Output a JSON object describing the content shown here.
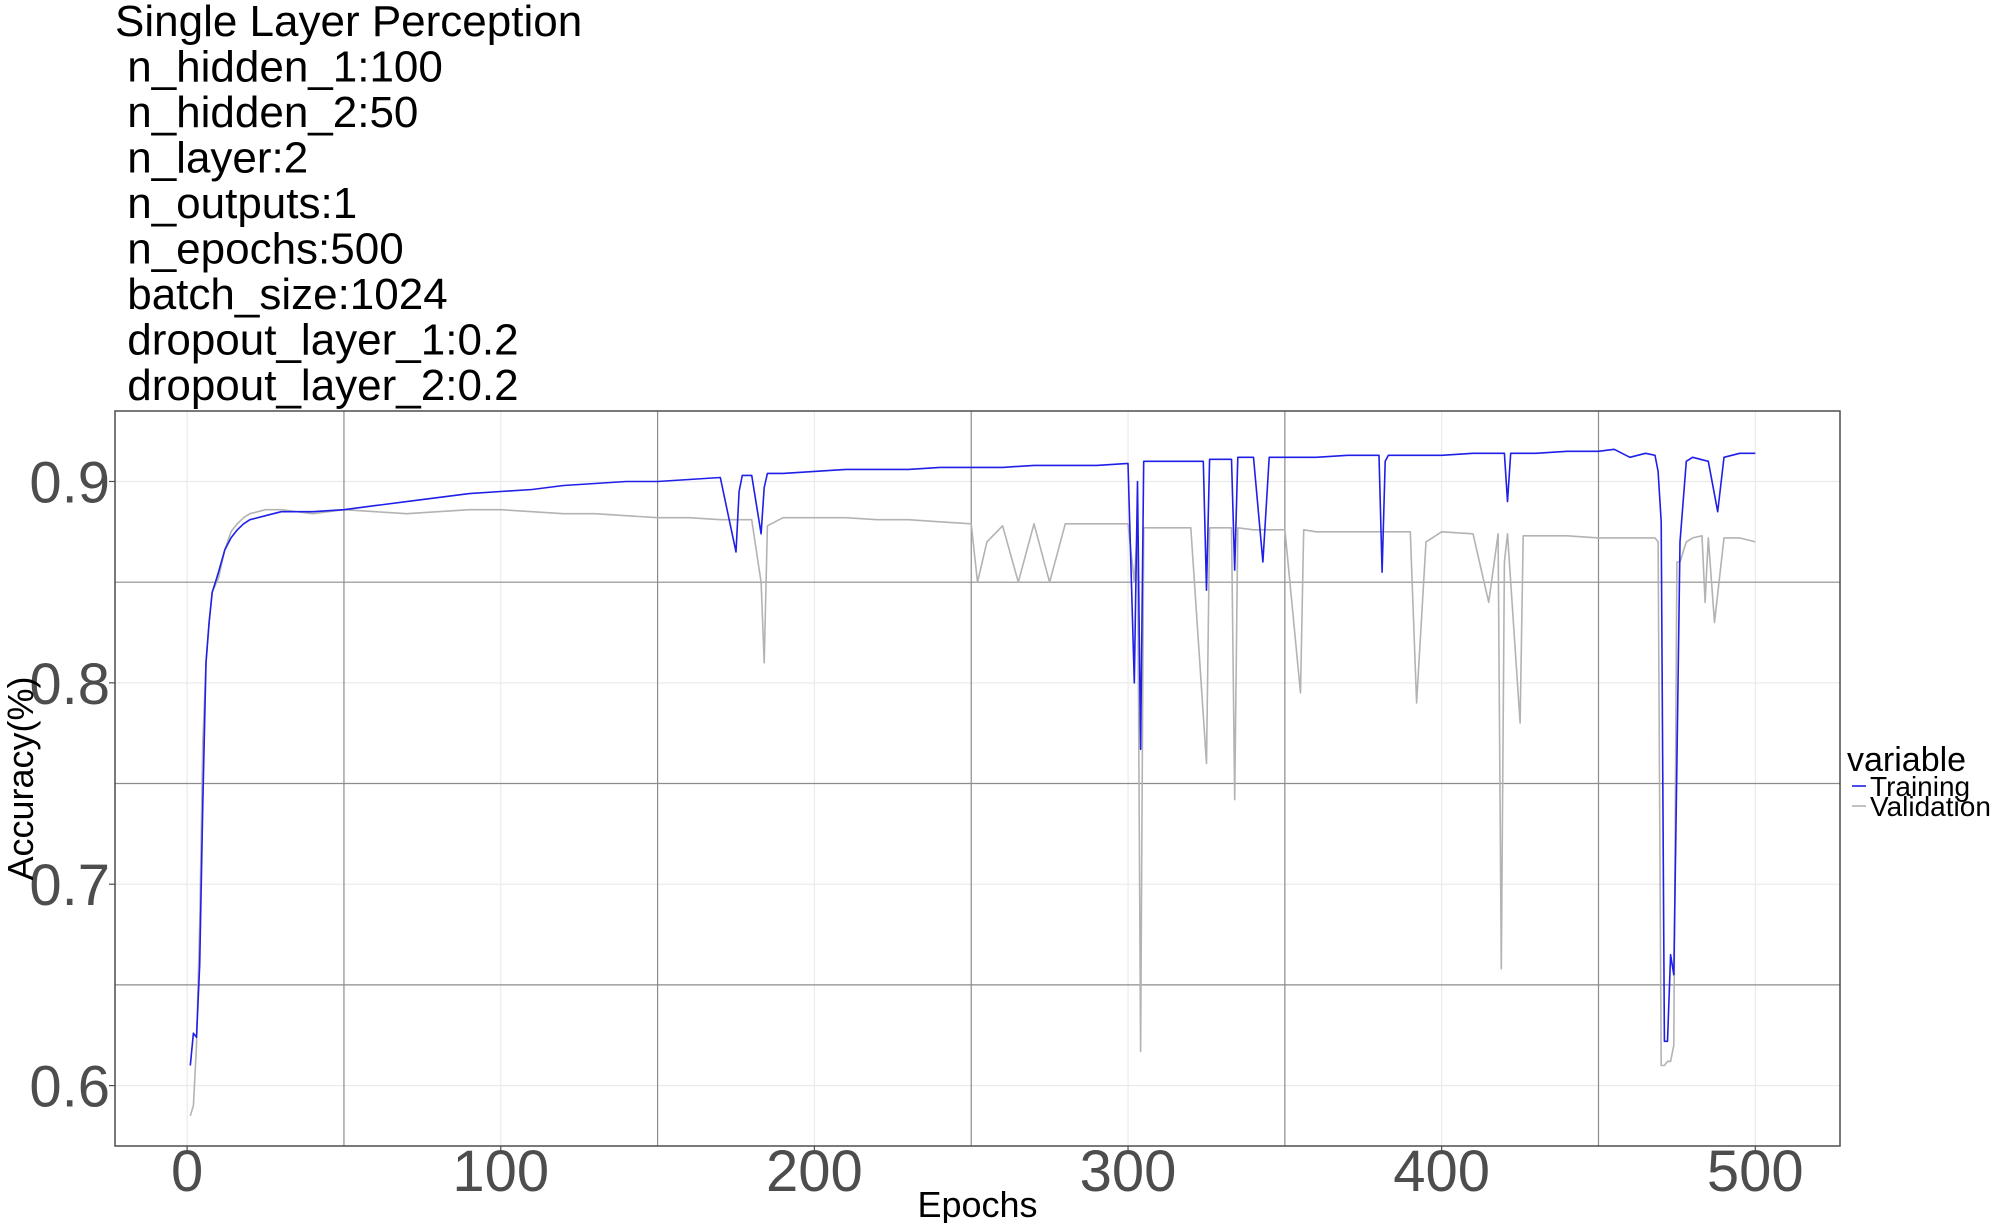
{
  "chart_data": {
    "type": "line",
    "title_lines": [
      "Single Layer Perception",
      " n_hidden_1:100",
      " n_hidden_2:50",
      " n_layer:2",
      " n_outputs:1",
      " n_epochs:500",
      " batch_size:1024",
      " dropout_layer_1:0.2",
      " dropout_layer_2:0.2"
    ],
    "xlabel": "Epochs",
    "ylabel": "Accuracy(%)",
    "xlim": [
      -23,
      527
    ],
    "ylim": [
      0.57,
      0.935
    ],
    "x_ticks": [
      0,
      100,
      200,
      300,
      400,
      500
    ],
    "x_tick_labels": [
      "0",
      "100",
      "200",
      "300",
      "400",
      "500"
    ],
    "y_ticks": [
      0.6,
      0.7,
      0.8,
      0.9
    ],
    "y_tick_labels": [
      "0.6",
      "0.7",
      "0.8",
      "0.9"
    ],
    "minor_x": [
      50,
      150,
      250,
      350,
      450
    ],
    "minor_y": [
      0.65,
      0.75,
      0.85
    ],
    "grid": true,
    "legend": {
      "title": "variable",
      "position": "right"
    },
    "series": [
      {
        "name": "Training",
        "color": "#1f1fe8",
        "x": [
          1,
          2,
          3,
          4,
          5,
          6,
          7,
          8,
          9,
          10,
          12,
          14,
          16,
          18,
          20,
          25,
          30,
          40,
          50,
          60,
          70,
          80,
          90,
          100,
          110,
          120,
          130,
          140,
          150,
          160,
          170,
          175,
          176,
          177,
          180,
          183,
          184,
          185,
          190,
          200,
          210,
          220,
          230,
          240,
          250,
          260,
          270,
          280,
          290,
          300,
          302,
          303,
          304,
          305,
          307,
          310,
          320,
          324,
          325,
          326,
          330,
          333,
          334,
          335,
          340,
          343,
          345,
          350,
          360,
          370,
          380,
          381,
          382,
          383,
          390,
          400,
          410,
          420,
          421,
          422,
          425,
          430,
          440,
          450,
          455,
          460,
          465,
          468,
          469,
          470,
          471,
          472,
          473,
          474,
          475,
          476,
          478,
          480,
          485,
          488,
          490,
          495,
          500
        ],
        "y": [
          0.61,
          0.626,
          0.624,
          0.66,
          0.74,
          0.81,
          0.83,
          0.845,
          0.85,
          0.855,
          0.866,
          0.872,
          0.876,
          0.879,
          0.881,
          0.883,
          0.885,
          0.885,
          0.886,
          0.888,
          0.89,
          0.892,
          0.894,
          0.895,
          0.896,
          0.898,
          0.899,
          0.9,
          0.9,
          0.901,
          0.902,
          0.865,
          0.895,
          0.903,
          0.903,
          0.874,
          0.897,
          0.904,
          0.904,
          0.905,
          0.906,
          0.906,
          0.906,
          0.907,
          0.907,
          0.907,
          0.908,
          0.908,
          0.908,
          0.909,
          0.8,
          0.9,
          0.767,
          0.91,
          0.91,
          0.91,
          0.91,
          0.91,
          0.846,
          0.911,
          0.911,
          0.911,
          0.856,
          0.912,
          0.912,
          0.86,
          0.912,
          0.912,
          0.912,
          0.913,
          0.913,
          0.855,
          0.91,
          0.913,
          0.913,
          0.913,
          0.914,
          0.914,
          0.89,
          0.914,
          0.914,
          0.914,
          0.915,
          0.915,
          0.916,
          0.912,
          0.914,
          0.913,
          0.905,
          0.88,
          0.622,
          0.622,
          0.665,
          0.655,
          0.76,
          0.87,
          0.91,
          0.912,
          0.91,
          0.885,
          0.912,
          0.914,
          0.914
        ]
      },
      {
        "name": "Validation",
        "color": "#b3b3b3",
        "x": [
          1,
          2,
          3,
          4,
          5,
          6,
          7,
          8,
          10,
          12,
          14,
          16,
          18,
          20,
          25,
          30,
          40,
          50,
          60,
          70,
          80,
          90,
          100,
          110,
          120,
          130,
          140,
          150,
          160,
          170,
          180,
          183,
          184,
          185,
          190,
          200,
          210,
          220,
          230,
          240,
          250,
          252,
          255,
          260,
          265,
          270,
          275,
          280,
          290,
          300,
          302,
          303,
          304,
          305,
          310,
          320,
          325,
          326,
          330,
          333,
          334,
          335,
          340,
          350,
          355,
          356,
          360,
          370,
          380,
          390,
          392,
          395,
          400,
          410,
          415,
          418,
          419,
          420,
          421,
          425,
          426,
          430,
          440,
          450,
          460,
          468,
          469,
          470,
          471,
          472,
          473,
          474,
          475,
          476,
          478,
          480,
          483,
          484,
          485,
          487,
          490,
          495,
          500
        ],
        "y": [
          0.585,
          0.59,
          0.62,
          0.68,
          0.77,
          0.81,
          0.83,
          0.845,
          0.852,
          0.866,
          0.875,
          0.879,
          0.882,
          0.884,
          0.886,
          0.886,
          0.884,
          0.886,
          0.885,
          0.884,
          0.885,
          0.886,
          0.886,
          0.885,
          0.884,
          0.884,
          0.883,
          0.882,
          0.882,
          0.881,
          0.881,
          0.85,
          0.81,
          0.878,
          0.882,
          0.882,
          0.882,
          0.881,
          0.881,
          0.88,
          0.879,
          0.85,
          0.87,
          0.878,
          0.85,
          0.879,
          0.85,
          0.879,
          0.879,
          0.879,
          0.85,
          0.878,
          0.617,
          0.877,
          0.877,
          0.877,
          0.76,
          0.877,
          0.877,
          0.877,
          0.742,
          0.877,
          0.876,
          0.876,
          0.795,
          0.876,
          0.875,
          0.875,
          0.875,
          0.875,
          0.79,
          0.87,
          0.875,
          0.874,
          0.84,
          0.874,
          0.658,
          0.86,
          0.874,
          0.78,
          0.873,
          0.873,
          0.873,
          0.872,
          0.872,
          0.872,
          0.87,
          0.61,
          0.61,
          0.612,
          0.612,
          0.62,
          0.86,
          0.86,
          0.87,
          0.872,
          0.873,
          0.84,
          0.872,
          0.83,
          0.872,
          0.872,
          0.87
        ]
      }
    ]
  }
}
